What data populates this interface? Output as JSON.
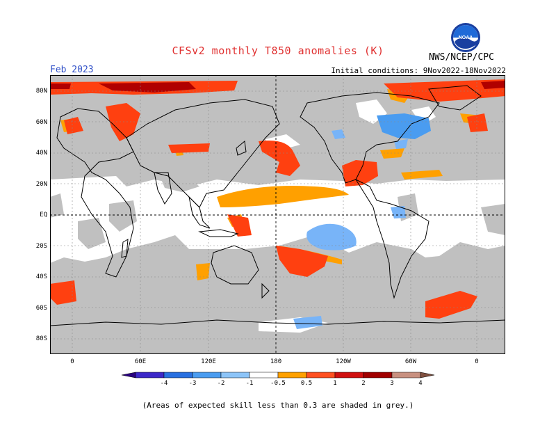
{
  "header": {
    "title": "CFSv2 monthly T850 anomalies (K)",
    "month": "Feb 2023",
    "initial_conditions": "Initial conditions: 9Nov2022-18Nov2022",
    "agency": "NWS/NCEP/CPC",
    "logo_text": "NOAA"
  },
  "map": {
    "lat_labels": [
      "80N",
      "60N",
      "40N",
      "20N",
      "EQ",
      "20S",
      "40S",
      "60S",
      "80S"
    ],
    "lon_labels": [
      "0",
      "60E",
      "120E",
      "180",
      "120W",
      "60W",
      "0"
    ],
    "colors": {
      "grey_low_skill": "#c0c0c0",
      "ocean_white": "#ffffff",
      "anom_pos_05_1": "#ffa000",
      "anom_pos_1_2": "#ff4010",
      "anom_pos_2_3": "#b00000",
      "anom_neg_05_1": "#78b4f8",
      "anom_neg_1_2": "#3c8ce0"
    }
  },
  "colorbar": {
    "labels": [
      "-4",
      "-3",
      "-2",
      "-1",
      "-0.5",
      "0.5",
      "1",
      "2",
      "3",
      "4"
    ],
    "colors": [
      "#2a0080",
      "#3c28c8",
      "#2870e0",
      "#4a9cf0",
      "#8cc4f8",
      "#ffffff",
      "#ffa000",
      "#ff5020",
      "#d01010",
      "#a00000",
      "#c89080",
      "#805040"
    ]
  },
  "footnote": "(Areas of expected skill less than 0.3 are shaded in grey.)"
}
